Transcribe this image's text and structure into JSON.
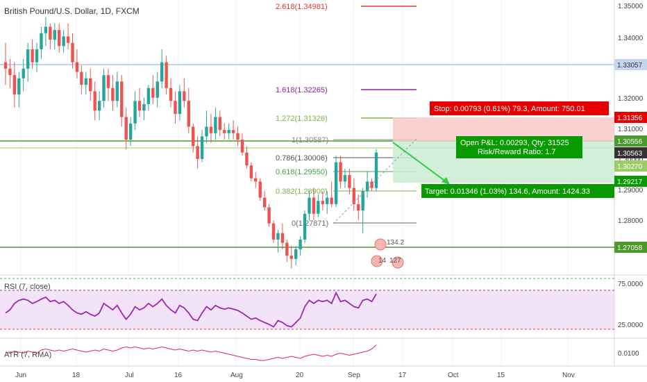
{
  "symbol_title": "British Pound/U.S. Dollar, 1D, FXCM",
  "colors": {
    "up": "#26a69a",
    "down": "#ef5350",
    "rsi": "#9c27b0",
    "rsi_bg": "#efdcf8",
    "stop_zone": "#f8c9c9",
    "target_zone": "#c9ecd2",
    "stop_box": "#e80000",
    "target_box": "#099a00",
    "level_line": "#4a9a2d",
    "hline_blue": "#aec6ee",
    "grid": "#f1f3f6",
    "axis_text": "#444"
  },
  "price_axis": {
    "ticks": [
      "1.35000",
      "1.34000",
      "1.32000",
      "1.31000",
      "1.30000",
      "1.29000",
      "1.28000"
    ],
    "tags": [
      {
        "value": "1.33057",
        "style": "blue"
      },
      {
        "value": "1.31356",
        "style": "red"
      },
      {
        "value": "1.30556",
        "style": "green"
      },
      {
        "value": "1.30563",
        "style": "dark"
      },
      {
        "value": "1.30270",
        "style": "green"
      },
      {
        "value": "1.29217",
        "style": "green"
      },
      {
        "value": "1.27058",
        "style": "green"
      }
    ]
  },
  "time_axis": [
    "Jun",
    "18",
    "Jul",
    "16",
    "Aug",
    "20",
    "Sep",
    "17",
    "Oct",
    "15",
    "Nov"
  ],
  "fib_levels": [
    {
      "label": "2.618(1.34981)",
      "color": "#e53935"
    },
    {
      "label": "1.618(1.32265)",
      "color": "#8e24aa"
    },
    {
      "label": "1.272(1.31326)",
      "color": "#7cb342"
    },
    {
      "label": "1(1.30587)",
      "color": "#888888"
    },
    {
      "label": "0.786(1.30006)",
      "color": "#555555"
    },
    {
      "label": "0.618(1.29550)",
      "color": "#43a047"
    },
    {
      "label": "0.382(1.28900)",
      "color": "#7cb342"
    },
    {
      "label": "0(1.27871)",
      "color": "#666666"
    }
  ],
  "position": {
    "stop_text": "Stop: 0.00793 (0.61%) 79.3, Amount: 750.01",
    "open_text": "Open P&L: 0.00293, Qty: 31525",
    "rr_text": "Risk/Reward Ratio: 1.7",
    "target_text": "Target: 0.01346 (1.03%) 134.6, Amount: 1424.33"
  },
  "earnings_marks": [
    "134.2",
    "14",
    "127"
  ],
  "rsi": {
    "label": "RSI (7, close)",
    "ticks": [
      "75.0000",
      "25.0000"
    ],
    "upper": 70,
    "lower": 30
  },
  "atr": {
    "label": "ATR (7, RMA)",
    "ticks": [
      "0.0100"
    ]
  },
  "chart_data": {
    "type": "candlestick",
    "title": "British Pound/U.S. Dollar, 1D, FXCM",
    "ylim": [
      1.266,
      1.3513
    ],
    "candles": [
      [
        1.332,
        1.338,
        1.325,
        1.33
      ],
      [
        1.33,
        1.333,
        1.324,
        1.328
      ],
      [
        1.328,
        1.332,
        1.318,
        1.322
      ],
      [
        1.322,
        1.329,
        1.318,
        1.327
      ],
      [
        1.327,
        1.333,
        1.323,
        1.33
      ],
      [
        1.33,
        1.338,
        1.326,
        1.336
      ],
      [
        1.336,
        1.339,
        1.33,
        1.332
      ],
      [
        1.332,
        1.338,
        1.329,
        1.336
      ],
      [
        1.336,
        1.343,
        1.333,
        1.341
      ],
      [
        1.341,
        1.346,
        1.337,
        1.343
      ],
      [
        1.343,
        1.344,
        1.336,
        1.339
      ],
      [
        1.339,
        1.344,
        1.336,
        1.342
      ],
      [
        1.342,
        1.344,
        1.335,
        1.337
      ],
      [
        1.337,
        1.342,
        1.335,
        1.34
      ],
      [
        1.34,
        1.344,
        1.336,
        1.338
      ],
      [
        1.338,
        1.341,
        1.33,
        1.332
      ],
      [
        1.332,
        1.336,
        1.327,
        1.329
      ],
      [
        1.329,
        1.331,
        1.322,
        1.325
      ],
      [
        1.325,
        1.329,
        1.322,
        1.327
      ],
      [
        1.327,
        1.33,
        1.32,
        1.323
      ],
      [
        1.323,
        1.326,
        1.314,
        1.317
      ],
      [
        1.317,
        1.323,
        1.314,
        1.32
      ],
      [
        1.32,
        1.33,
        1.318,
        1.328
      ],
      [
        1.328,
        1.33,
        1.32,
        1.324
      ],
      [
        1.324,
        1.328,
        1.317,
        1.32
      ],
      [
        1.32,
        1.329,
        1.318,
        1.326
      ],
      [
        1.326,
        1.328,
        1.312,
        1.315
      ],
      [
        1.315,
        1.318,
        1.305,
        1.308
      ],
      [
        1.308,
        1.315,
        1.306,
        1.313
      ],
      [
        1.313,
        1.323,
        1.311,
        1.32
      ],
      [
        1.32,
        1.324,
        1.315,
        1.317
      ],
      [
        1.317,
        1.321,
        1.314,
        1.319
      ],
      [
        1.319,
        1.325,
        1.317,
        1.324
      ],
      [
        1.324,
        1.328,
        1.319,
        1.321
      ],
      [
        1.321,
        1.329,
        1.318,
        1.326
      ],
      [
        1.326,
        1.336,
        1.324,
        1.332
      ],
      [
        1.332,
        1.334,
        1.322,
        1.324
      ],
      [
        1.324,
        1.327,
        1.318,
        1.32
      ],
      [
        1.32,
        1.323,
        1.313,
        1.316
      ],
      [
        1.316,
        1.325,
        1.314,
        1.323
      ],
      [
        1.323,
        1.327,
        1.318,
        1.32
      ],
      [
        1.32,
        1.324,
        1.31,
        1.312
      ],
      [
        1.312,
        1.313,
        1.304,
        1.306
      ],
      [
        1.306,
        1.309,
        1.299,
        1.302
      ],
      [
        1.302,
        1.311,
        1.301,
        1.309
      ],
      [
        1.309,
        1.317,
        1.307,
        1.312
      ],
      [
        1.312,
        1.316,
        1.307,
        1.31
      ],
      [
        1.31,
        1.318,
        1.308,
        1.315
      ],
      [
        1.315,
        1.317,
        1.309,
        1.311
      ],
      [
        1.311,
        1.313,
        1.308,
        1.31
      ],
      [
        1.31,
        1.313,
        1.308,
        1.311
      ],
      [
        1.311,
        1.314,
        1.308,
        1.31
      ],
      [
        1.31,
        1.312,
        1.306,
        1.308
      ],
      [
        1.308,
        1.31,
        1.303,
        1.304
      ],
      [
        1.304,
        1.306,
        1.299,
        1.3
      ],
      [
        1.3,
        1.301,
        1.295,
        1.296
      ],
      [
        1.296,
        1.298,
        1.293,
        1.295
      ],
      [
        1.295,
        1.296,
        1.289,
        1.29
      ],
      [
        1.29,
        1.292,
        1.286,
        1.287
      ],
      [
        1.287,
        1.288,
        1.281,
        1.282
      ],
      [
        1.282,
        1.283,
        1.276,
        1.277
      ],
      [
        1.277,
        1.28,
        1.273,
        1.279
      ],
      [
        1.279,
        1.282,
        1.274,
        1.276
      ],
      [
        1.276,
        1.277,
        1.27,
        1.272
      ],
      [
        1.272,
        1.275,
        1.268,
        1.271
      ],
      [
        1.271,
        1.275,
        1.269,
        1.274
      ],
      [
        1.274,
        1.278,
        1.272,
        1.277
      ],
      [
        1.277,
        1.286,
        1.276,
        1.285
      ],
      [
        1.285,
        1.292,
        1.283,
        1.29
      ],
      [
        1.29,
        1.293,
        1.283,
        1.285
      ],
      [
        1.285,
        1.291,
        1.284,
        1.289
      ],
      [
        1.289,
        1.292,
        1.286,
        1.288
      ],
      [
        1.288,
        1.292,
        1.285,
        1.29
      ],
      [
        1.29,
        1.295,
        1.287,
        1.288
      ],
      [
        1.288,
        1.303,
        1.287,
        1.301
      ],
      [
        1.301,
        1.303,
        1.293,
        1.295
      ],
      [
        1.295,
        1.299,
        1.293,
        1.297
      ],
      [
        1.297,
        1.299,
        1.291,
        1.293
      ],
      [
        1.293,
        1.296,
        1.286,
        1.288
      ],
      [
        1.288,
        1.291,
        1.283,
        1.286
      ],
      [
        1.286,
        1.293,
        1.279,
        1.292
      ],
      [
        1.292,
        1.298,
        1.29,
        1.295
      ],
      [
        1.295,
        1.296,
        1.292,
        1.293
      ],
      [
        1.293,
        1.305,
        1.292,
        1.304
      ]
    ],
    "rsi_values": [
      40,
      45,
      55,
      60,
      62,
      60,
      55,
      58,
      62,
      65,
      58,
      60,
      55,
      58,
      52,
      45,
      40,
      38,
      42,
      38,
      35,
      40,
      55,
      50,
      45,
      52,
      40,
      30,
      38,
      50,
      45,
      48,
      55,
      50,
      55,
      62,
      52,
      45,
      40,
      52,
      48,
      40,
      30,
      28,
      40,
      50,
      45,
      52,
      48,
      46,
      48,
      46,
      44,
      40,
      35,
      30,
      32,
      28,
      25,
      22,
      18,
      28,
      25,
      20,
      18,
      25,
      32,
      50,
      60,
      55,
      60,
      58,
      60,
      55,
      72,
      58,
      60,
      55,
      50,
      48,
      60,
      62,
      58,
      70
    ],
    "atr_values": [
      0.0095,
      0.0094,
      0.0096,
      0.0095,
      0.0094,
      0.0096,
      0.0095,
      0.0094,
      0.0097,
      0.0098,
      0.0097,
      0.0096,
      0.0097,
      0.0096,
      0.0097,
      0.0098,
      0.0097,
      0.0096,
      0.0095,
      0.0096,
      0.0097,
      0.0096,
      0.0098,
      0.0097,
      0.0096,
      0.0097,
      0.0099,
      0.01,
      0.0099,
      0.01,
      0.0099,
      0.0098,
      0.0099,
      0.0098,
      0.0099,
      0.01,
      0.0099,
      0.0098,
      0.0097,
      0.0098,
      0.0097,
      0.0096,
      0.0097,
      0.0096,
      0.0097,
      0.0096,
      0.0095,
      0.0096,
      0.0095,
      0.0094,
      0.0093,
      0.0092,
      0.0091,
      0.009,
      0.0089,
      0.0088,
      0.0088,
      0.0087,
      0.0087,
      0.0088,
      0.0089,
      0.009,
      0.0089,
      0.009,
      0.0091,
      0.009,
      0.0089,
      0.0091,
      0.0092,
      0.0093,
      0.0092,
      0.0091,
      0.0092,
      0.0091,
      0.0093,
      0.0094,
      0.0093,
      0.0092,
      0.0093,
      0.0094,
      0.0095,
      0.0096,
      0.0098,
      0.0102
    ]
  }
}
